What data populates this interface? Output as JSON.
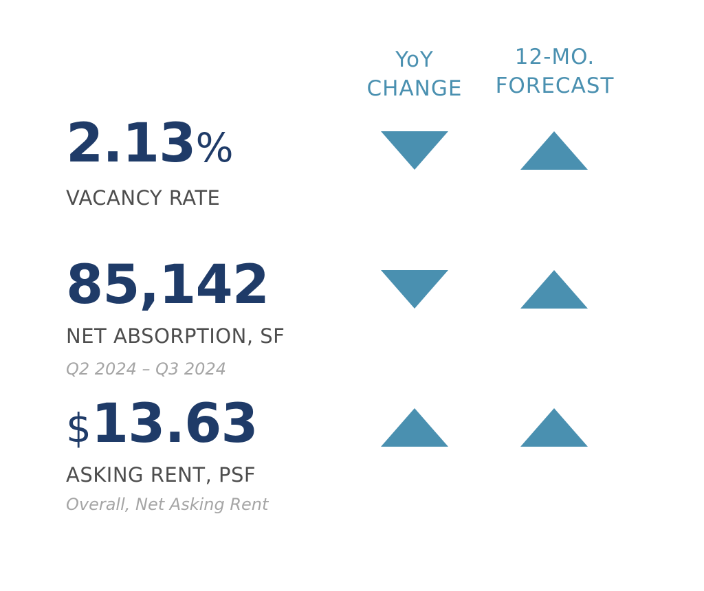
{
  "columns": {
    "yoy_line1": "YoY",
    "yoy_line2": "CHANGE",
    "forecast_line1": "12-MO.",
    "forecast_line2": "FORECAST"
  },
  "metrics": [
    {
      "value": "2.13",
      "unit_suffix": "%",
      "label": "VACANCY RATE",
      "yoy_direction": "down",
      "forecast_direction": "up"
    },
    {
      "value": "85,142",
      "label": "NET ABSORPTION, SF",
      "sublabel": "Q2 2024 – Q3 2024",
      "yoy_direction": "down",
      "forecast_direction": "up"
    },
    {
      "unit_prefix": "$",
      "value": "13.63",
      "label": "ASKING RENT, PSF",
      "sublabel": "Overall, Net Asking Rent",
      "yoy_direction": "up",
      "forecast_direction": "up"
    }
  ],
  "colors": {
    "accent": "#4a90b0",
    "value_text": "#1f3b68",
    "label_text": "#4d4d4d",
    "sublabel_text": "#a5a5a5"
  },
  "icons": {
    "up": "triangle-up-icon",
    "down": "triangle-down-icon"
  }
}
